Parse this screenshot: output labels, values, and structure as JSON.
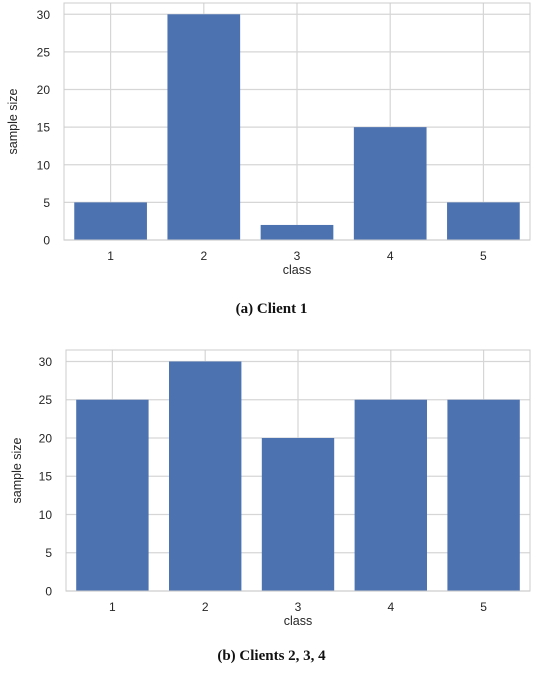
{
  "chart_data": [
    {
      "type": "bar",
      "categories": [
        "1",
        "2",
        "3",
        "4",
        "5"
      ],
      "values": [
        5,
        30,
        2,
        15,
        5
      ],
      "xlabel": "class",
      "ylabel": "sample size",
      "ylim": [
        0,
        31.5
      ],
      "yticks": [
        0,
        5,
        10,
        15,
        20,
        25,
        30
      ],
      "grid": true,
      "bar_color": "#4c72b0",
      "caption": "(a) Client 1"
    },
    {
      "type": "bar",
      "categories": [
        "1",
        "2",
        "3",
        "4",
        "5"
      ],
      "values": [
        25,
        30,
        20,
        25,
        25
      ],
      "xlabel": "class",
      "ylabel": "sample size",
      "ylim": [
        0,
        31.5
      ],
      "yticks": [
        0,
        5,
        10,
        15,
        20,
        25,
        30
      ],
      "grid": true,
      "bar_color": "#4c72b0",
      "caption": "(b) Clients 2, 3, 4"
    }
  ]
}
